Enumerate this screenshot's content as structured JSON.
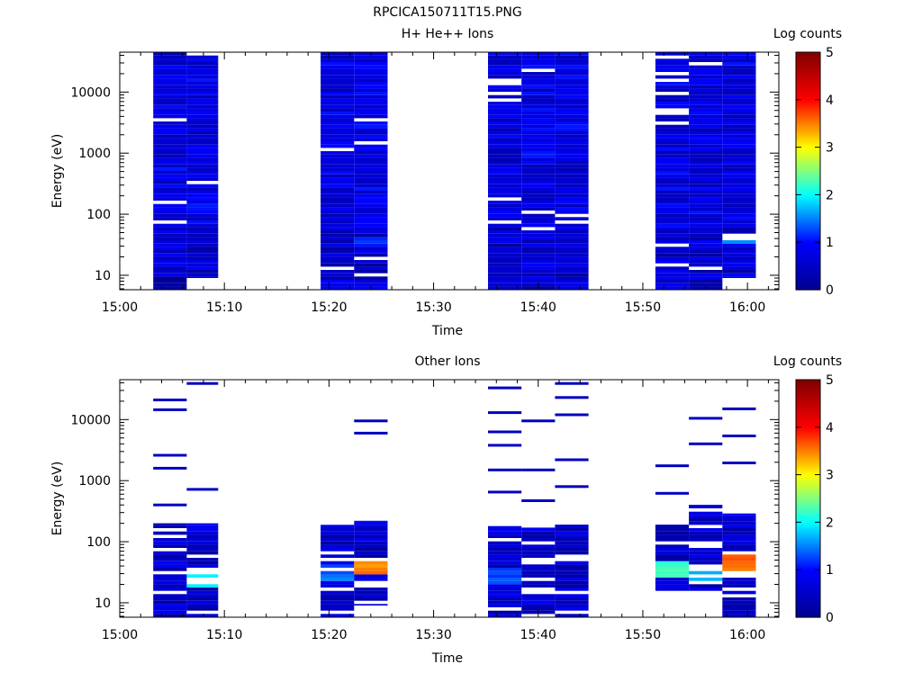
{
  "figure": {
    "title": "RPCICA150711T15.PNG"
  },
  "chart_data": [
    {
      "type": "heatmap",
      "title": "H+ He++ Ions",
      "xlabel": "Time",
      "ylabel": "Energy (eV)",
      "x_tick_labels": [
        "15:00",
        "15:10",
        "15:20",
        "15:30",
        "15:40",
        "15:50",
        "16:00"
      ],
      "x_ticks_minutes": [
        0,
        10,
        20,
        30,
        40,
        50,
        60
      ],
      "xlim_minutes": [
        0,
        63
      ],
      "y_scale": "log",
      "ylim": [
        5.8,
        45000
      ],
      "y_tick_labels": [
        "10",
        "100",
        "1000",
        "10000"
      ],
      "y_ticks": [
        10,
        100,
        1000,
        10000
      ],
      "colorbar": {
        "label": "Log counts",
        "range": [
          0,
          5
        ],
        "tick_labels": [
          "0",
          "1",
          "2",
          "3",
          "4",
          "5"
        ]
      },
      "colormap": [
        "#00008f",
        "#0000ff",
        "#00ffff",
        "#ffff00",
        "#ff0000",
        "#800000"
      ],
      "time_columns_minutes": [
        [
          3.2,
          6.4
        ],
        [
          6.4,
          9.4
        ],
        [
          19.2,
          22.4
        ],
        [
          22.4,
          25.6
        ],
        [
          35.2,
          38.4
        ],
        [
          38.4,
          41.6
        ],
        [
          41.6,
          44.8
        ],
        [
          51.2,
          54.4
        ],
        [
          54.4,
          57.6
        ],
        [
          57.6,
          60.8
        ]
      ],
      "energy_range_by_column_eV": [
        [
          5.8,
          45000
        ],
        [
          9.0,
          45000
        ],
        [
          5.8,
          45000
        ],
        [
          5.8,
          45000
        ],
        [
          5.8,
          45000
        ],
        [
          5.8,
          45000
        ],
        [
          5.8,
          45000
        ],
        [
          5.8,
          45000
        ],
        [
          5.8,
          45000
        ],
        [
          9.0,
          45000
        ]
      ],
      "typical_log_counts": 0.75,
      "notable_bins": [
        {
          "column": 9,
          "energy_eV": [
            35,
            45
          ],
          "log_counts": 1.6
        },
        {
          "column": 3,
          "energy_eV": [
            30,
            38
          ],
          "log_counts": 1.1
        },
        {
          "column": 4,
          "energy_eV": [
            9,
            22
          ],
          "log_counts": 0.45
        },
        {
          "column": 0,
          "energy_eV": [
            5.8,
            9
          ],
          "log_counts": 0.1
        }
      ]
    },
    {
      "type": "heatmap",
      "title": "Other Ions",
      "xlabel": "Time",
      "ylabel": "Energy (eV)",
      "x_tick_labels": [
        "15:00",
        "15:10",
        "15:20",
        "15:30",
        "15:40",
        "15:50",
        "16:00"
      ],
      "x_ticks_minutes": [
        0,
        10,
        20,
        30,
        40,
        50,
        60
      ],
      "xlim_minutes": [
        0,
        63
      ],
      "y_scale": "log",
      "ylim": [
        5.8,
        45000
      ],
      "y_tick_labels": [
        "10",
        "100",
        "1000",
        "10000"
      ],
      "y_ticks": [
        10,
        100,
        1000,
        10000
      ],
      "colorbar": {
        "label": "Log counts",
        "range": [
          0,
          5
        ],
        "tick_labels": [
          "0",
          "1",
          "2",
          "3",
          "4",
          "5"
        ]
      },
      "colormap": [
        "#00008f",
        "#0000ff",
        "#00ffff",
        "#ffff00",
        "#ff0000",
        "#800000"
      ],
      "time_columns_minutes": [
        [
          3.2,
          6.4
        ],
        [
          6.4,
          9.4
        ],
        [
          19.2,
          22.4
        ],
        [
          22.4,
          25.6
        ],
        [
          35.2,
          38.4
        ],
        [
          38.4,
          41.6
        ],
        [
          41.6,
          44.8
        ],
        [
          51.2,
          54.4
        ],
        [
          54.4,
          57.6
        ],
        [
          57.6,
          60.8
        ]
      ],
      "dense_range_by_column_eV": [
        [
          5.8,
          200
        ],
        [
          5.8,
          200
        ],
        [
          5.8,
          210
        ],
        [
          9.0,
          220
        ],
        [
          5.8,
          180
        ],
        [
          5.8,
          170
        ],
        [
          5.8,
          190
        ],
        [
          15,
          190
        ],
        [
          15,
          400
        ],
        [
          5.8,
          290
        ]
      ],
      "sparse_energy_lines_eV": [
        [
          400,
          1600,
          2600,
          14500,
          21000
        ],
        [
          720,
          39000
        ],
        [],
        [
          6000,
          9500
        ],
        [
          650,
          1500,
          3800,
          6300,
          13000,
          33000
        ],
        [
          470,
          1500,
          9500
        ],
        [
          800,
          2200,
          12000,
          23000,
          39000
        ],
        [
          620,
          1750
        ],
        [
          4000,
          10500
        ],
        [
          1950,
          5400,
          15000
        ]
      ],
      "peak_bins": [
        {
          "column": 1,
          "energy_eV": [
            20,
            36
          ],
          "log_counts": 2.0
        },
        {
          "column": 2,
          "energy_eV": [
            25,
            40
          ],
          "log_counts": 1.4
        },
        {
          "column": 3,
          "energy_eV": [
            30,
            45
          ],
          "log_counts": 3.5
        },
        {
          "column": 4,
          "energy_eV": [
            22,
            36
          ],
          "log_counts": 1.3
        },
        {
          "column": 7,
          "energy_eV": [
            28,
            45
          ],
          "log_counts": 2.2
        },
        {
          "column": 8,
          "energy_eV": [
            24,
            40
          ],
          "log_counts": 1.6
        },
        {
          "column": 9,
          "energy_eV": [
            30,
            55
          ],
          "log_counts": 3.6
        }
      ]
    }
  ]
}
